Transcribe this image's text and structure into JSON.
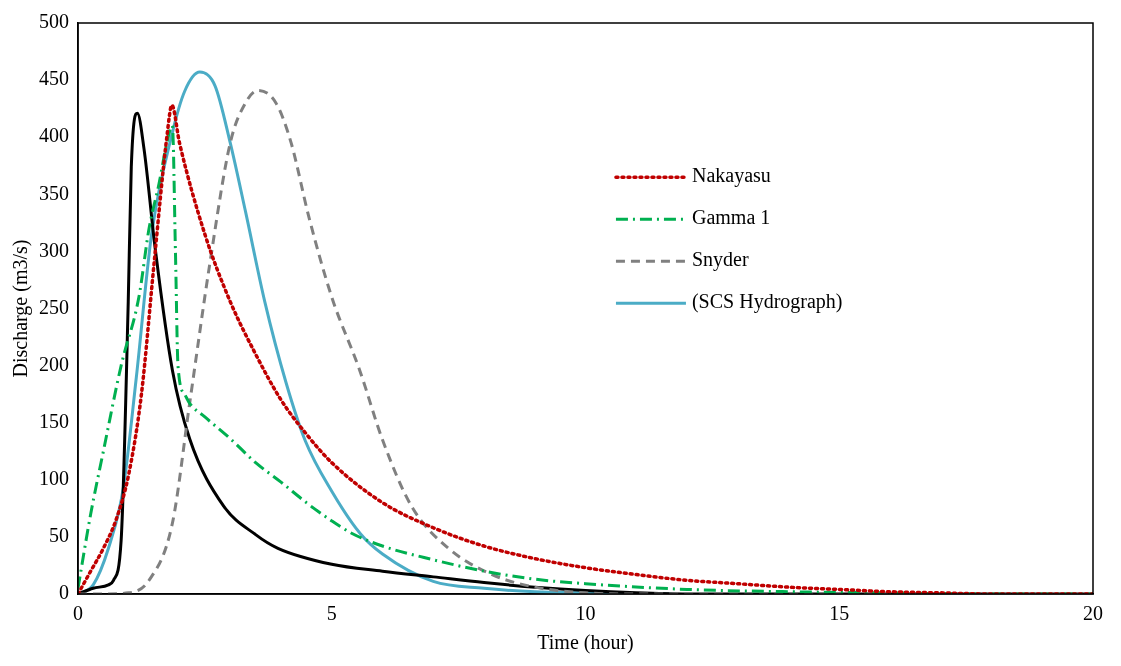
{
  "chart_data": {
    "type": "line",
    "xlabel": "Time (hour)",
    "ylabel": "Discharge (m3/s)",
    "xlim": [
      0,
      20
    ],
    "xticks": [
      0,
      5,
      10,
      15,
      20
    ],
    "ylim": [
      0,
      500
    ],
    "yticks": [
      0,
      50,
      100,
      150,
      200,
      250,
      300,
      350,
      400,
      450,
      500
    ],
    "grid": false,
    "legend": "right",
    "marker": "none",
    "series": [
      {
        "name": "Nakayasu",
        "color": "#c00000",
        "line_style": "dotted",
        "x": [
          0,
          0.25,
          0.5,
          0.75,
          1.0,
          1.25,
          1.5,
          1.75,
          1.85,
          2.0,
          2.5,
          3,
          3.5,
          4,
          4.5,
          5,
          6,
          7,
          8,
          9,
          10,
          11,
          12,
          13,
          14,
          15,
          16,
          17,
          18,
          20
        ],
        "values": [
          0,
          20,
          40,
          65,
          105,
          175,
          290,
          400,
          428,
          395,
          315,
          256,
          210,
          170,
          140,
          115,
          80,
          58,
          42,
          31,
          23,
          17,
          12,
          9,
          6,
          4,
          2,
          1,
          0,
          0
        ]
      },
      {
        "name": "Gamma 1",
        "color": "#00b050",
        "line_style": "dashdot",
        "x": [
          0,
          0.25,
          0.5,
          0.85,
          1.2,
          1.4,
          1.6,
          1.75,
          1.86,
          1.92,
          1.97,
          2.1,
          2.2,
          2.5,
          3,
          3.5,
          4,
          4.5,
          5,
          5.4,
          6,
          7,
          8,
          9,
          10,
          12,
          14,
          16,
          18,
          20
        ],
        "values": [
          5,
          70,
          125,
          200,
          260,
          320,
          360,
          395,
          410,
          300,
          200,
          175,
          167,
          155,
          136,
          115,
          98,
          80,
          64,
          53,
          42,
          30,
          20,
          13,
          9,
          4,
          2,
          1,
          0,
          0
        ]
      },
      {
        "name": "Snyder",
        "color": "#808080",
        "line_style": "dashed",
        "x": [
          0,
          0.5,
          1.0,
          1.4,
          1.86,
          2.2,
          2.6,
          3.0,
          3.3,
          3.55,
          3.9,
          4.2,
          4.55,
          5,
          5.55,
          6,
          6.57,
          7.3,
          8.16,
          9,
          10,
          11,
          20
        ],
        "values": [
          0,
          0,
          1,
          12,
          62,
          167,
          290,
          395,
          430,
          441,
          430,
          395,
          330,
          260,
          196,
          135,
          77,
          40,
          17,
          6,
          1,
          0,
          0
        ]
      },
      {
        "color": "#000000",
        "line_style": "solid",
        "x": [
          0,
          0.3,
          0.6,
          0.7,
          0.85,
          0.99,
          1.05,
          1.17,
          1.3,
          1.52,
          1.86,
          2.2,
          2.87,
          3.5,
          3.94,
          5,
          6,
          7,
          8,
          9,
          10,
          11,
          12,
          20
        ],
        "values": [
          0,
          5,
          8,
          12,
          47,
          256,
          374,
          421,
          390,
          303,
          196,
          136,
          77,
          52,
          40,
          26,
          20,
          15,
          10,
          6,
          3,
          1,
          0,
          0
        ]
      },
      {
        "name": "(SCS Hydrograph)",
        "color": "#4bacc6",
        "line_style": "solid",
        "x": [
          0,
          0.3,
          0.6,
          0.89,
          1.15,
          1.45,
          1.86,
          2.1,
          2.4,
          2.7,
          3.0,
          3.3,
          3.68,
          4.1,
          4.48,
          5,
          5.56,
          6,
          7,
          8,
          9,
          10,
          11,
          11.7
        ],
        "values": [
          0,
          8,
          40,
          92,
          190,
          315,
          404,
          440,
          457,
          445,
          395,
          335,
          256,
          185,
          134,
          90,
          53,
          35,
          11,
          5,
          2,
          1,
          0,
          0
        ]
      }
    ]
  }
}
